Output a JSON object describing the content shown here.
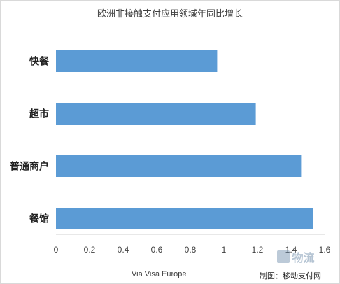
{
  "chart_data": {
    "type": "bar",
    "orientation": "horizontal",
    "title": "欧洲非接触支付应用领域年同比增长",
    "categories": [
      "快餐",
      "超市",
      "普通商户",
      "餐馆"
    ],
    "values": [
      0.96,
      1.19,
      1.46,
      1.53
    ],
    "xlim": [
      0,
      1.6
    ],
    "x_ticks": [
      "0",
      "0.2",
      "0.4",
      "0.6",
      "0.8",
      "1",
      "1.2",
      "1.4",
      "1.6"
    ],
    "grid": false,
    "bar_color": "#5b9bd5"
  },
  "source_text": "Via Visa Europe",
  "credit_text": "制图：移动支付网",
  "watermark": {
    "icon": "logo-mark-icon",
    "text": "物流"
  }
}
